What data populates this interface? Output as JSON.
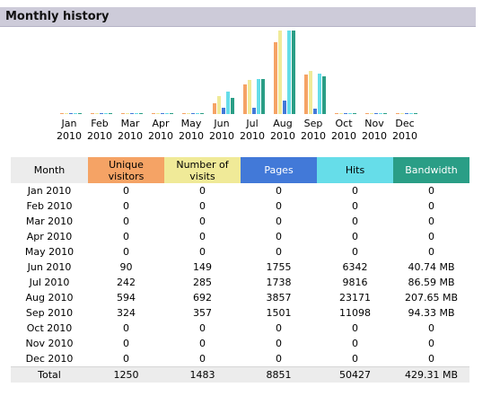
{
  "section_title": "Monthly history",
  "colors": {
    "unique_visitors": "#f5a365",
    "visits": "#f0ea98",
    "pages": "#4279d8",
    "hits": "#66dde9",
    "bandwidth": "#2a9e86"
  },
  "chart_data": {
    "type": "bar",
    "categories": [
      "Jan 2010",
      "Feb 2010",
      "Mar 2010",
      "Apr 2010",
      "May 2010",
      "Jun 2010",
      "Jul 2010",
      "Aug 2010",
      "Sep 2010",
      "Oct 2010",
      "Nov 2010",
      "Dec 2010"
    ],
    "series": [
      {
        "name": "Unique visitors",
        "values": [
          0,
          0,
          0,
          0,
          0,
          90,
          242,
          594,
          324,
          0,
          0,
          0
        ]
      },
      {
        "name": "Number of visits",
        "values": [
          0,
          0,
          0,
          0,
          0,
          149,
          285,
          692,
          357,
          0,
          0,
          0
        ]
      },
      {
        "name": "Pages",
        "values": [
          0,
          0,
          0,
          0,
          0,
          1755,
          1738,
          3857,
          1501,
          0,
          0,
          0
        ]
      },
      {
        "name": "Hits",
        "values": [
          0,
          0,
          0,
          0,
          0,
          6342,
          9816,
          23171,
          11098,
          0,
          0,
          0
        ]
      },
      {
        "name": "Bandwidth",
        "values": [
          0,
          0,
          0,
          0,
          0,
          40.74,
          86.59,
          207.65,
          94.33,
          0,
          0,
          0
        ]
      }
    ],
    "legend": "none",
    "grid": false
  },
  "month_labels": [
    {
      "month": "Jan",
      "year": "2010"
    },
    {
      "month": "Feb",
      "year": "2010"
    },
    {
      "month": "Mar",
      "year": "2010"
    },
    {
      "month": "Apr",
      "year": "2010"
    },
    {
      "month": "May",
      "year": "2010"
    },
    {
      "month": "Jun",
      "year": "2010"
    },
    {
      "month": "Jul",
      "year": "2010"
    },
    {
      "month": "Aug",
      "year": "2010"
    },
    {
      "month": "Sep",
      "year": "2010"
    },
    {
      "month": "Oct",
      "year": "2010"
    },
    {
      "month": "Nov",
      "year": "2010"
    },
    {
      "month": "Dec",
      "year": "2010"
    }
  ],
  "table": {
    "headers": {
      "month": "Month",
      "unique": "Unique visitors",
      "visits": "Number of visits",
      "pages": "Pages",
      "hits": "Hits",
      "bandwidth": "Bandwidth"
    },
    "rows": [
      {
        "month": "Jan 2010",
        "unique": "0",
        "visits": "0",
        "pages": "0",
        "hits": "0",
        "bandwidth": "0"
      },
      {
        "month": "Feb 2010",
        "unique": "0",
        "visits": "0",
        "pages": "0",
        "hits": "0",
        "bandwidth": "0"
      },
      {
        "month": "Mar 2010",
        "unique": "0",
        "visits": "0",
        "pages": "0",
        "hits": "0",
        "bandwidth": "0"
      },
      {
        "month": "Apr 2010",
        "unique": "0",
        "visits": "0",
        "pages": "0",
        "hits": "0",
        "bandwidth": "0"
      },
      {
        "month": "May 2010",
        "unique": "0",
        "visits": "0",
        "pages": "0",
        "hits": "0",
        "bandwidth": "0"
      },
      {
        "month": "Jun 2010",
        "unique": "90",
        "visits": "149",
        "pages": "1755",
        "hits": "6342",
        "bandwidth": "40.74 MB"
      },
      {
        "month": "Jul 2010",
        "unique": "242",
        "visits": "285",
        "pages": "1738",
        "hits": "9816",
        "bandwidth": "86.59 MB"
      },
      {
        "month": "Aug 2010",
        "unique": "594",
        "visits": "692",
        "pages": "3857",
        "hits": "23171",
        "bandwidth": "207.65 MB"
      },
      {
        "month": "Sep 2010",
        "unique": "324",
        "visits": "357",
        "pages": "1501",
        "hits": "11098",
        "bandwidth": "94.33 MB"
      },
      {
        "month": "Oct 2010",
        "unique": "0",
        "visits": "0",
        "pages": "0",
        "hits": "0",
        "bandwidth": "0"
      },
      {
        "month": "Nov 2010",
        "unique": "0",
        "visits": "0",
        "pages": "0",
        "hits": "0",
        "bandwidth": "0"
      },
      {
        "month": "Dec 2010",
        "unique": "0",
        "visits": "0",
        "pages": "0",
        "hits": "0",
        "bandwidth": "0"
      }
    ],
    "total": {
      "month": "Total",
      "unique": "1250",
      "visits": "1483",
      "pages": "8851",
      "hits": "50427",
      "bandwidth": "429.31 MB"
    }
  }
}
